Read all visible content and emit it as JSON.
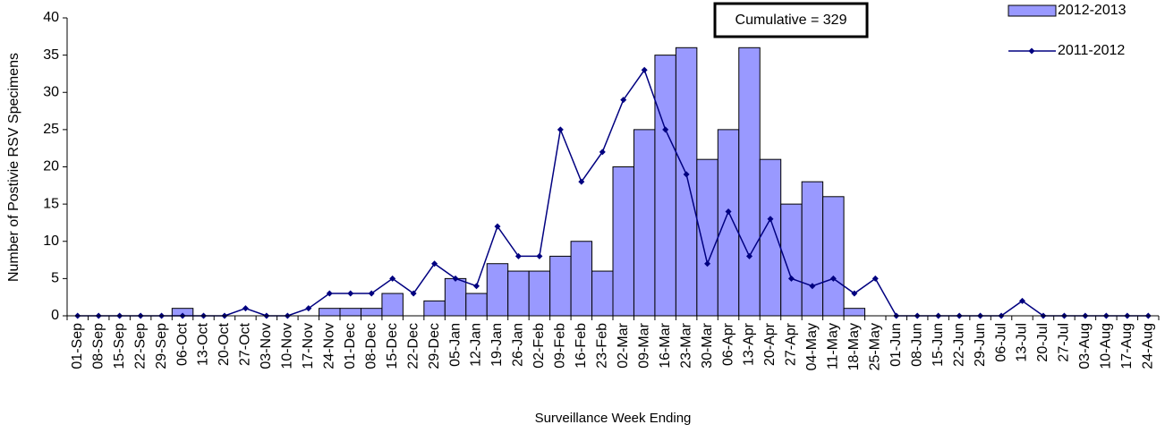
{
  "chart_data": {
    "type": "bar_line",
    "annotation": "Cumulative = 329",
    "x_label": "Surveillance Week Ending",
    "y_label": "Number of Postivie RSV Specimens",
    "categories": [
      "01-Sep",
      "08-Sep",
      "15-Sep",
      "22-Sep",
      "29-Sep",
      "06-Oct",
      "13-Oct",
      "20-Oct",
      "27-Oct",
      "03-Nov",
      "10-Nov",
      "17-Nov",
      "24-Nov",
      "01-Dec",
      "08-Dec",
      "15-Dec",
      "22-Dec",
      "29-Dec",
      "05-Jan",
      "12-Jan",
      "19-Jan",
      "26-Jan",
      "02-Feb",
      "09-Feb",
      "16-Feb",
      "23-Feb",
      "02-Mar",
      "09-Mar",
      "16-Mar",
      "23-Mar",
      "30-Mar",
      "06-Apr",
      "13-Apr",
      "20-Apr",
      "27-Apr",
      "04-May",
      "11-May",
      "18-May",
      "25-May",
      "01-Jun",
      "08-Jun",
      "15-Jun",
      "22-Jun",
      "29-Jun",
      "06-Jul",
      "13-Jul",
      "20-Jul",
      "27-Jul",
      "03-Aug",
      "10-Aug",
      "17-Aug",
      "24-Aug"
    ],
    "series": [
      {
        "name": "2012-2013",
        "kind": "bar",
        "color": "#9999ff",
        "values": [
          0,
          0,
          0,
          0,
          0,
          1,
          0,
          0,
          0,
          0,
          0,
          0,
          1,
          1,
          1,
          3,
          0,
          2,
          5,
          3,
          7,
          6,
          6,
          8,
          10,
          6,
          20,
          25,
          35,
          36,
          21,
          25,
          36,
          21,
          15,
          18,
          16,
          1,
          null,
          null,
          null,
          null,
          null,
          null,
          null,
          null,
          null,
          null,
          null,
          null,
          null,
          null
        ]
      },
      {
        "name": "2011-2012",
        "kind": "line",
        "color": "#000080",
        "values": [
          0,
          0,
          0,
          0,
          0,
          0,
          0,
          0,
          1,
          0,
          0,
          1,
          3,
          3,
          3,
          5,
          3,
          7,
          5,
          4,
          12,
          8,
          8,
          25,
          18,
          22,
          29,
          33,
          25,
          19,
          7,
          14,
          8,
          13,
          5,
          4,
          5,
          3,
          5,
          0,
          0,
          0,
          0,
          0,
          0,
          2,
          0,
          0,
          0,
          0,
          0,
          0
        ]
      }
    ],
    "ylim": [
      0,
      40
    ],
    "yticks": [
      0,
      5,
      10,
      15,
      20,
      25,
      30,
      35,
      40
    ]
  }
}
